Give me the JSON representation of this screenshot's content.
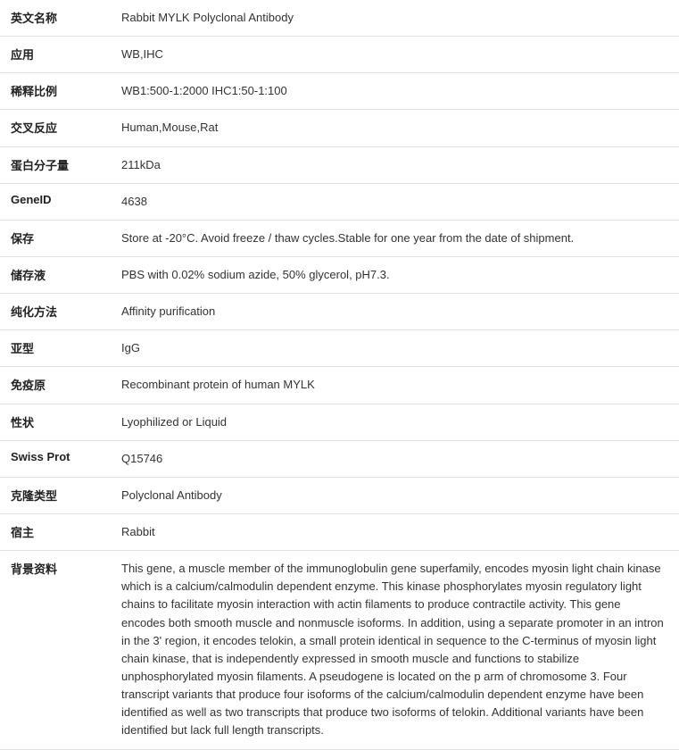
{
  "rows": [
    {
      "label": "英文名称",
      "value": "Rabbit MYLK Polyclonal Antibody"
    },
    {
      "label": "应用",
      "value": "WB,IHC"
    },
    {
      "label": "稀释比例",
      "value": "WB1:500-1:2000 IHC1:50-1:100"
    },
    {
      "label": "交叉反应",
      "value": "Human,Mouse,Rat"
    },
    {
      "label": "蛋白分子量",
      "value": "211kDa"
    },
    {
      "label": "GeneID",
      "value": "4638"
    },
    {
      "label": "保存",
      "value": "Store at -20°C. Avoid freeze / thaw cycles.Stable for one year from the date of shipment."
    },
    {
      "label": "储存液",
      "value": "PBS with 0.02% sodium azide, 50% glycerol, pH7.3."
    },
    {
      "label": "纯化方法",
      "value": "Affinity purification"
    },
    {
      "label": "亚型",
      "value": "IgG"
    },
    {
      "label": "免疫原",
      "value": "Recombinant protein of human MYLK"
    },
    {
      "label": "性状",
      "value": "Lyophilized or Liquid"
    },
    {
      "label": "Swiss Prot",
      "value": "Q15746"
    },
    {
      "label": "克隆类型",
      "value": "Polyclonal Antibody"
    },
    {
      "label": "宿主",
      "value": "Rabbit"
    },
    {
      "label": "背景资料",
      "value": "This gene, a muscle member of the immunoglobulin gene superfamily, encodes myosin light chain kinase which is a calcium/calmodulin dependent enzyme. This kinase phosphorylates myosin regulatory light chains to facilitate myosin interaction with actin filaments to produce contractile activity. This gene encodes both smooth muscle and nonmuscle isoforms. In addition, using a separate promoter in an intron in the 3' region, it encodes telokin, a small protein identical in sequence to the C-terminus of myosin light chain kinase, that is independently expressed in smooth muscle and functions to stabilize unphosphorylated myosin filaments. A pseudogene is located on the p arm of chromosome 3. Four transcript variants that produce four isoforms of the calcium/calmodulin dependent enzyme have been identified as well as two transcripts that produce two isoforms of telokin. Additional variants have been identified but lack full length transcripts."
    }
  ]
}
